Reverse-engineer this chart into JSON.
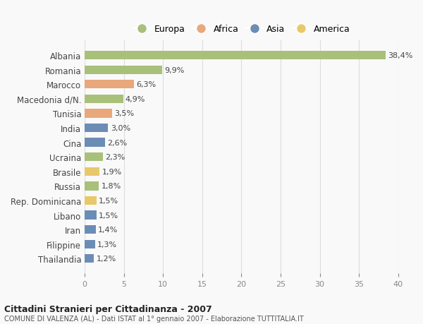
{
  "categories": [
    "Albania",
    "Romania",
    "Marocco",
    "Macedonia d/N.",
    "Tunisia",
    "India",
    "Cina",
    "Ucraina",
    "Brasile",
    "Russia",
    "Rep. Dominicana",
    "Libano",
    "Iran",
    "Filippine",
    "Thailandia"
  ],
  "values": [
    38.4,
    9.9,
    6.3,
    4.9,
    3.5,
    3.0,
    2.6,
    2.3,
    1.9,
    1.8,
    1.5,
    1.5,
    1.4,
    1.3,
    1.2
  ],
  "labels": [
    "38,4%",
    "9,9%",
    "6,3%",
    "4,9%",
    "3,5%",
    "3,0%",
    "2,6%",
    "2,3%",
    "1,9%",
    "1,8%",
    "1,5%",
    "1,5%",
    "1,4%",
    "1,3%",
    "1,2%"
  ],
  "continents": [
    "Europa",
    "Europa",
    "Africa",
    "Europa",
    "Africa",
    "Asia",
    "Asia",
    "Europa",
    "America",
    "Europa",
    "America",
    "Asia",
    "Asia",
    "Asia",
    "Asia"
  ],
  "colors": {
    "Europa": "#a8c07a",
    "Africa": "#e8a87c",
    "Asia": "#6b8db5",
    "America": "#e8c96a"
  },
  "legend_order": [
    "Europa",
    "Africa",
    "Asia",
    "America"
  ],
  "xlim": [
    0,
    40
  ],
  "xticks": [
    0,
    5,
    10,
    15,
    20,
    25,
    30,
    35,
    40
  ],
  "title": "Cittadini Stranieri per Cittadinanza - 2007",
  "subtitle": "COMUNE DI VALENZA (AL) - Dati ISTAT al 1° gennaio 2007 - Elaborazione TUTTITALIA.IT",
  "background_color": "#f9f9f9",
  "grid_color": "#dddddd",
  "bar_height": 0.6
}
